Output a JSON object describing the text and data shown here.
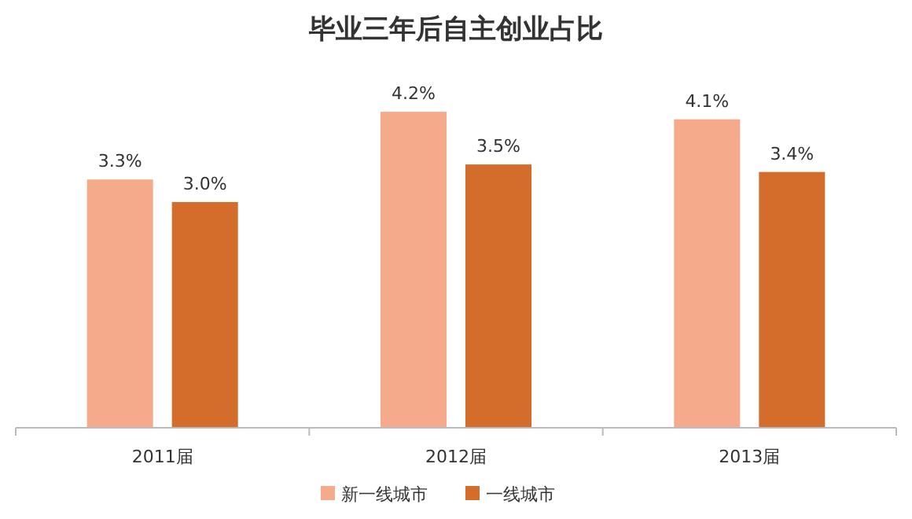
{
  "chart_data": {
    "type": "bar",
    "title": "毕业三年后自主创业占比",
    "categories": [
      "2011届",
      "2012届",
      "2013届"
    ],
    "series": [
      {
        "name": "新一线城市",
        "color": "#f4aa8b",
        "values": [
          3.3,
          4.2,
          4.1
        ],
        "value_labels": [
          "3.3%",
          "4.2%",
          "4.1%"
        ]
      },
      {
        "name": "一线城市",
        "color": "#d46c2c",
        "values": [
          3.0,
          3.5,
          3.4
        ],
        "value_labels": [
          "3.0%",
          "3.5%",
          "3.4%"
        ]
      }
    ],
    "grid": false,
    "legend": "bottom"
  }
}
